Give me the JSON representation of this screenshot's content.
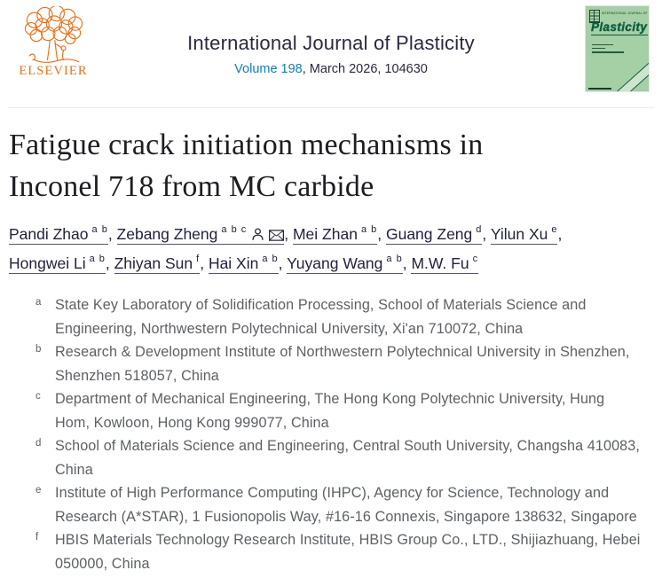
{
  "header": {
    "publisher_wordmark": "ELSEVIER",
    "journal_title": "International Journal of Plasticity",
    "volume_link_text": "Volume 198",
    "issue_text": ", March 2026, 104630",
    "cover_small_title": "INTERNATIONAL JOURNAL OF",
    "cover_large_title": "Plasticity"
  },
  "article": {
    "title": "Fatigue crack initiation mechanisms in Inconel 718 from MC carbide",
    "title_lines": [
      "Fatigue crack initiation mechanisms in",
      "Inconel 718 from MC carbide"
    ]
  },
  "authors": {
    "separator": ", ",
    "list": [
      {
        "name": "Pandi Zhao",
        "sups": [
          "a",
          "b"
        ]
      },
      {
        "name": "Zebang Zheng",
        "sups": [
          "a",
          "b",
          "c"
        ],
        "icons": [
          "person-icon",
          "envelope-icon"
        ]
      },
      {
        "name": "Mei Zhan",
        "sups": [
          "a",
          "b"
        ]
      },
      {
        "name": "Guang Zeng",
        "sups": [
          "d"
        ]
      },
      {
        "name": "Yilun Xu",
        "sups": [
          "e"
        ]
      },
      {
        "name": "Hongwei Li",
        "sups": [
          "a",
          "b"
        ]
      },
      {
        "name": "Zhiyan Sun",
        "sups": [
          "f"
        ]
      },
      {
        "name": "Hai Xin",
        "sups": [
          "a",
          "b"
        ]
      },
      {
        "name": "Yuyang Wang",
        "sups": [
          "a",
          "b"
        ]
      },
      {
        "name": "M.W. Fu",
        "sups": [
          "c"
        ]
      }
    ]
  },
  "affiliations": [
    {
      "label": "a",
      "text": "State Key Laboratory of Solidification Processing, School of Materials Science and Engineering, Northwestern Polytechnical University, Xi'an 710072, China"
    },
    {
      "label": "b",
      "text": "Research & Development Institute of Northwestern Polytechnical University in Shenzhen, Shenzhen 518057, China"
    },
    {
      "label": "c",
      "text": "Department of Mechanical Engineering, The Hong Kong Polytechnic University, Hung Hom, Kowloon, Hong Kong 999077, China"
    },
    {
      "label": "d",
      "text": "School of Materials Science and Engineering, Central South University, Changsha 410083, China"
    },
    {
      "label": "e",
      "text": "Institute of High Performance Computing (IHPC), Agency for Science, Technology and Research (A*STAR), 1 Fusionopolis Way, #16-16 Connexis, Singapore 138632, Singapore"
    },
    {
      "label": "f",
      "text": "HBIS Materials Technology Research Institute, HBIS Group Co., LTD., Shijiazhuang, Hebei 050000, China"
    }
  ],
  "colors": {
    "elsevier_orange": "#e9711c",
    "link_blue": "#0f7fba",
    "header_text": "#29293f",
    "title_text": "#1d1d22",
    "author_text": "#22223c",
    "affiliation_text": "#5d6065",
    "divider": "#ececec",
    "cover_green": "#a5cfa5",
    "cover_dark_green": "#0d5c40"
  }
}
